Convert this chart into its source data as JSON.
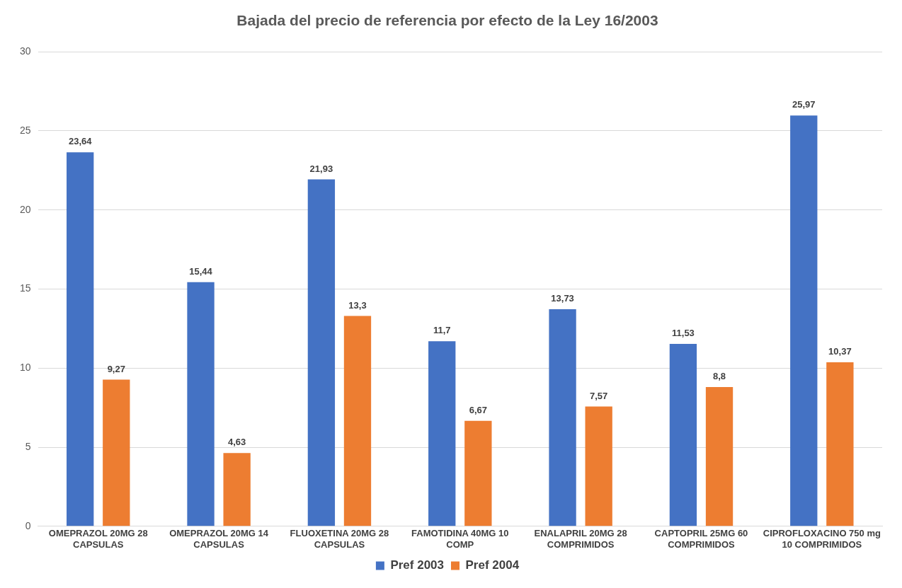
{
  "chart_data": {
    "type": "bar",
    "title": "Bajada del precio de referencia por efecto de la Ley 16/2003",
    "categories": [
      "OMEPRAZOL 20MG 28 CAPSULAS",
      "OMEPRAZOL 20MG 14 CAPSULAS",
      "FLUOXETINA 20MG 28 CAPSULAS",
      "FAMOTIDINA 40MG 10 COMP",
      "ENALAPRIL 20MG 28 COMPRIMIDOS",
      "CAPTOPRIL 25MG 60 COMPRIMIDOS",
      "CIPROFLOXACINO 750 mg 10 COMPRIMIDOS"
    ],
    "series": [
      {
        "name": "Pref 2003",
        "color": "#4472c4",
        "values": [
          23.64,
          15.44,
          21.93,
          11.7,
          13.73,
          11.53,
          25.97
        ],
        "value_labels": [
          "23,64",
          "15,44",
          "21,93",
          "11,7",
          "13,73",
          "11,53",
          "25,97"
        ]
      },
      {
        "name": "Pref 2004",
        "color": "#ed7d31",
        "values": [
          9.27,
          4.63,
          13.3,
          6.67,
          7.57,
          8.8,
          10.37
        ],
        "value_labels": [
          "9,27",
          "4,63",
          "13,3",
          "6,67",
          "7,57",
          "8,8",
          "10,37"
        ]
      }
    ],
    "ylim": [
      0,
      30
    ],
    "yticks": [
      0,
      5,
      10,
      15,
      20,
      25,
      30
    ],
    "grid": "y",
    "legend": "bottom"
  }
}
